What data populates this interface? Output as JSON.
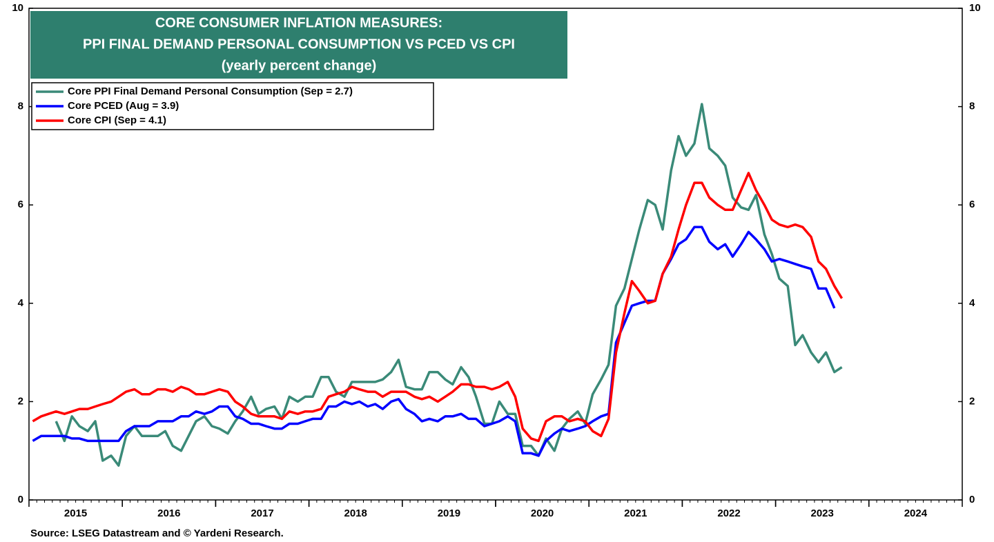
{
  "chart_data": {
    "type": "line",
    "title": [
      "CORE CONSUMER  INFLATION MEASURES:",
      "PPI FINAL DEMAND PERSONAL CONSUMPTION VS PCED VS CPI",
      "(yearly percent change)"
    ],
    "source": "Source: LSEG Datastream and © Yardeni Research.",
    "x": [
      2015.04,
      2015.13,
      2015.21,
      2015.29,
      2015.38,
      2015.46,
      2015.54,
      2015.63,
      2015.71,
      2015.79,
      2015.88,
      2015.96,
      2016.04,
      2016.13,
      2016.21,
      2016.29,
      2016.38,
      2016.46,
      2016.54,
      2016.63,
      2016.71,
      2016.79,
      2016.88,
      2016.96,
      2017.04,
      2017.13,
      2017.21,
      2017.29,
      2017.38,
      2017.46,
      2017.54,
      2017.63,
      2017.71,
      2017.79,
      2017.88,
      2017.96,
      2018.04,
      2018.13,
      2018.21,
      2018.29,
      2018.38,
      2018.46,
      2018.54,
      2018.63,
      2018.71,
      2018.79,
      2018.88,
      2018.96,
      2019.04,
      2019.13,
      2019.21,
      2019.29,
      2019.38,
      2019.46,
      2019.54,
      2019.63,
      2019.71,
      2019.79,
      2019.88,
      2019.96,
      2020.04,
      2020.13,
      2020.21,
      2020.29,
      2020.38,
      2020.46,
      2020.54,
      2020.63,
      2020.71,
      2020.79,
      2020.88,
      2020.96,
      2021.04,
      2021.13,
      2021.21,
      2021.29,
      2021.38,
      2021.46,
      2021.54,
      2021.63,
      2021.71,
      2021.79,
      2021.88,
      2021.96,
      2022.04,
      2022.13,
      2022.21,
      2022.29,
      2022.38,
      2022.46,
      2022.54,
      2022.63,
      2022.71,
      2022.79,
      2022.88,
      2022.96,
      2023.04,
      2023.13,
      2023.21,
      2023.29,
      2023.38,
      2023.46,
      2023.54,
      2023.63,
      2023.71
    ],
    "series": [
      {
        "name": "Core PPI Final Demand Personal Consumption (Sep = 2.7)",
        "color": "#3a8a78",
        "values": [
          null,
          null,
          null,
          1.6,
          1.2,
          1.7,
          1.5,
          1.4,
          1.6,
          0.8,
          0.9,
          0.7,
          1.3,
          1.5,
          1.3,
          1.3,
          1.3,
          1.4,
          1.1,
          1.0,
          1.3,
          1.6,
          1.7,
          1.5,
          1.45,
          1.35,
          1.6,
          1.8,
          2.1,
          1.75,
          1.85,
          1.9,
          1.65,
          2.1,
          2.0,
          2.1,
          2.1,
          2.5,
          2.5,
          2.2,
          2.1,
          2.4,
          2.4,
          2.4,
          2.4,
          2.45,
          2.6,
          2.85,
          2.3,
          2.25,
          2.25,
          2.6,
          2.6,
          2.45,
          2.35,
          2.7,
          2.5,
          2.1,
          1.55,
          1.55,
          2.0,
          1.75,
          1.75,
          1.1,
          1.1,
          0.9,
          1.25,
          1.0,
          1.45,
          1.65,
          1.8,
          1.55,
          2.15,
          2.45,
          2.75,
          3.95,
          4.3,
          4.9,
          5.5,
          6.1,
          6.0,
          5.5,
          6.7,
          7.4,
          7.0,
          7.25,
          8.05,
          7.15,
          7.0,
          6.8,
          6.15,
          5.95,
          5.9,
          6.2,
          5.4,
          5.0,
          4.5,
          4.35,
          3.15,
          3.35,
          3.0,
          2.8,
          3.0,
          2.6,
          2.7
        ]
      },
      {
        "name": "Core PCED (Aug = 3.9)",
        "color": "#0000ff",
        "values": [
          1.2,
          1.3,
          1.3,
          1.3,
          1.3,
          1.25,
          1.25,
          1.2,
          1.2,
          1.2,
          1.2,
          1.2,
          1.4,
          1.5,
          1.5,
          1.5,
          1.6,
          1.6,
          1.6,
          1.7,
          1.7,
          1.8,
          1.75,
          1.8,
          1.9,
          1.9,
          1.7,
          1.65,
          1.55,
          1.55,
          1.5,
          1.45,
          1.45,
          1.55,
          1.55,
          1.6,
          1.65,
          1.65,
          1.9,
          1.9,
          2.0,
          1.95,
          2.0,
          1.9,
          1.95,
          1.85,
          2.0,
          2.05,
          1.85,
          1.75,
          1.6,
          1.65,
          1.6,
          1.7,
          1.7,
          1.75,
          1.65,
          1.65,
          1.5,
          1.55,
          1.6,
          1.7,
          1.6,
          0.95,
          0.95,
          0.9,
          1.2,
          1.35,
          1.45,
          1.4,
          1.45,
          1.5,
          1.6,
          1.7,
          1.75,
          3.2,
          3.6,
          3.95,
          4.0,
          4.05,
          4.05,
          4.6,
          4.9,
          5.2,
          5.3,
          5.55,
          5.55,
          5.25,
          5.1,
          5.2,
          4.95,
          5.2,
          5.45,
          5.3,
          5.1,
          4.85,
          4.9,
          4.85,
          4.8,
          4.75,
          4.7,
          4.3,
          4.3,
          3.9,
          null
        ]
      },
      {
        "name": "Core CPI (Sep = 4.1)",
        "color": "#ff0000",
        "values": [
          1.6,
          1.7,
          1.75,
          1.8,
          1.75,
          1.8,
          1.85,
          1.85,
          1.9,
          1.95,
          2.0,
          2.1,
          2.2,
          2.25,
          2.15,
          2.15,
          2.25,
          2.25,
          2.2,
          2.3,
          2.25,
          2.15,
          2.15,
          2.2,
          2.25,
          2.2,
          2.0,
          1.9,
          1.75,
          1.7,
          1.7,
          1.7,
          1.65,
          1.8,
          1.75,
          1.8,
          1.8,
          1.85,
          2.1,
          2.15,
          2.2,
          2.3,
          2.25,
          2.2,
          2.2,
          2.1,
          2.2,
          2.2,
          2.2,
          2.1,
          2.05,
          2.1,
          2.0,
          2.1,
          2.2,
          2.35,
          2.35,
          2.3,
          2.3,
          2.25,
          2.3,
          2.4,
          2.1,
          1.45,
          1.25,
          1.2,
          1.6,
          1.7,
          1.7,
          1.6,
          1.65,
          1.6,
          1.4,
          1.3,
          1.65,
          3.0,
          3.8,
          4.45,
          4.25,
          4.0,
          4.05,
          4.6,
          4.95,
          5.5,
          6.0,
          6.45,
          6.45,
          6.15,
          6.0,
          5.9,
          5.9,
          6.3,
          6.65,
          6.3,
          6.0,
          5.7,
          5.6,
          5.55,
          5.6,
          5.55,
          5.35,
          4.85,
          4.7,
          4.35,
          4.1
        ]
      }
    ],
    "xlim": [
      2015,
      2025
    ],
    "xticks": [
      {
        "value": 2015.5,
        "label": "2015"
      },
      {
        "value": 2016.5,
        "label": "2016"
      },
      {
        "value": 2017.5,
        "label": "2017"
      },
      {
        "value": 2018.5,
        "label": "2018"
      },
      {
        "value": 2019.5,
        "label": "2019"
      },
      {
        "value": 2020.5,
        "label": "2020"
      },
      {
        "value": 2021.5,
        "label": "2021"
      },
      {
        "value": 2022.5,
        "label": "2022"
      },
      {
        "value": 2023.5,
        "label": "2023"
      },
      {
        "value": 2024.5,
        "label": "2024"
      }
    ],
    "ylim": [
      0,
      10
    ],
    "yticks": [
      0,
      2,
      4,
      6,
      8,
      10
    ],
    "y2lim": [
      0,
      10
    ],
    "y2ticks": [
      0,
      2,
      4,
      6,
      8,
      10
    ],
    "legend": "upper left"
  }
}
